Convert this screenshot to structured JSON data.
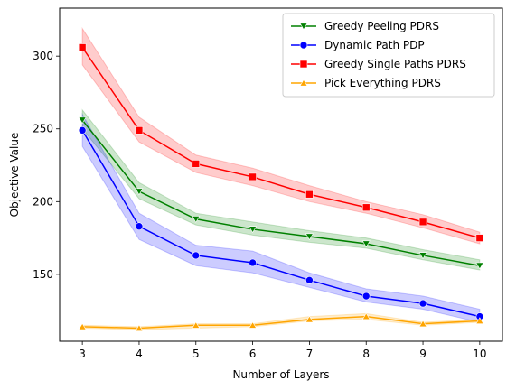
{
  "chart_data": {
    "type": "line",
    "xlabel": "Number of Layers",
    "ylabel": "Objective Value",
    "x": [
      3,
      4,
      5,
      6,
      7,
      8,
      9,
      10
    ],
    "xlim": [
      2.6,
      10.4
    ],
    "ylim": [
      104,
      333
    ],
    "xticks": [
      "3",
      "4",
      "5",
      "6",
      "7",
      "8",
      "9",
      "10"
    ],
    "yticks": [
      150,
      200,
      250,
      300
    ],
    "ytick_labels": [
      "150",
      "200",
      "250",
      "300"
    ],
    "grid": false,
    "legend_position": "upper-right",
    "series": [
      {
        "name": "Greedy Peeling PDRS",
        "color": "#008000",
        "marker": "triangle-down",
        "values": [
          256,
          207,
          188,
          181,
          176,
          171,
          163,
          156
        ],
        "lower": [
          250,
          202,
          184,
          177,
          172,
          168,
          160,
          153
        ],
        "upper": [
          263,
          213,
          192,
          186,
          180,
          175,
          167,
          160
        ]
      },
      {
        "name": "Dynamic Path PDP",
        "color": "#0000ff",
        "marker": "circle",
        "values": [
          249,
          183,
          163,
          158,
          146,
          135,
          130,
          121
        ],
        "lower": [
          238,
          174,
          156,
          151,
          141,
          131,
          126,
          117
        ],
        "upper": [
          260,
          192,
          170,
          166,
          151,
          140,
          135,
          126
        ]
      },
      {
        "name": "Greedy Single Paths PDRS",
        "color": "#ff0000",
        "marker": "square",
        "values": [
          306,
          249,
          226,
          217,
          205,
          196,
          186,
          175
        ],
        "lower": [
          294,
          241,
          220,
          211,
          200,
          192,
          182,
          171
        ],
        "upper": [
          319,
          258,
          232,
          223,
          211,
          200,
          191,
          179
        ]
      },
      {
        "name": "Pick Everything PDRS",
        "color": "#ffa500",
        "marker": "triangle-up",
        "values": [
          114,
          113,
          115,
          115,
          119,
          121,
          116,
          118
        ],
        "lower": [
          113,
          112,
          113,
          114,
          118,
          119,
          115,
          117
        ],
        "upper": [
          115,
          114,
          116,
          116,
          121,
          123,
          117,
          119
        ]
      }
    ]
  }
}
